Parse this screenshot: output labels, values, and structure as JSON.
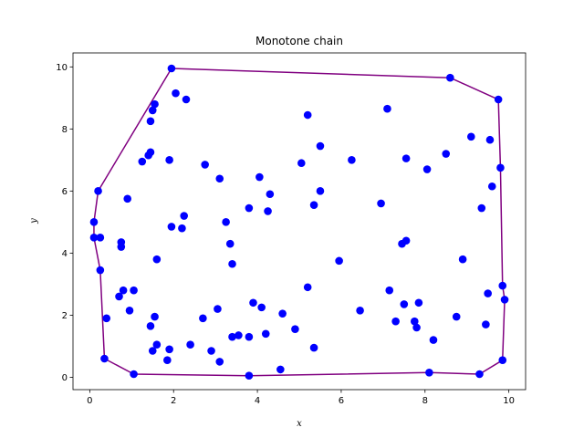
{
  "chart_data": {
    "type": "scatter",
    "title": "Monotone chain",
    "xlabel": "x",
    "ylabel": "y",
    "xlim": [
      -0.4,
      10.4
    ],
    "ylim": [
      -0.4,
      10.45
    ],
    "xticks": [
      0,
      2,
      4,
      6,
      8,
      10
    ],
    "yticks": [
      0,
      2,
      4,
      6,
      8,
      10
    ],
    "grid": false,
    "point_color": "#0000ff",
    "hull_color": "#800080",
    "points": [
      [
        0.1,
        5.0
      ],
      [
        0.1,
        4.5
      ],
      [
        0.2,
        6.0
      ],
      [
        0.25,
        4.5
      ],
      [
        0.25,
        3.45
      ],
      [
        0.35,
        0.6
      ],
      [
        0.4,
        1.9
      ],
      [
        0.7,
        2.6
      ],
      [
        0.75,
        4.2
      ],
      [
        0.75,
        4.35
      ],
      [
        0.8,
        2.8
      ],
      [
        0.9,
        5.75
      ],
      [
        0.95,
        2.15
      ],
      [
        1.05,
        2.8
      ],
      [
        1.05,
        0.1
      ],
      [
        1.25,
        6.95
      ],
      [
        1.4,
        7.15
      ],
      [
        1.45,
        7.25
      ],
      [
        1.45,
        8.25
      ],
      [
        1.5,
        8.6
      ],
      [
        1.55,
        8.8
      ],
      [
        1.45,
        1.65
      ],
      [
        1.55,
        1.95
      ],
      [
        1.5,
        0.85
      ],
      [
        1.6,
        1.05
      ],
      [
        1.6,
        3.8
      ],
      [
        1.85,
        0.55
      ],
      [
        1.9,
        0.9
      ],
      [
        1.9,
        7.0
      ],
      [
        1.95,
        4.85
      ],
      [
        1.95,
        9.95
      ],
      [
        2.05,
        9.15
      ],
      [
        2.2,
        4.8
      ],
      [
        2.25,
        5.2
      ],
      [
        2.3,
        8.95
      ],
      [
        2.4,
        1.05
      ],
      [
        2.7,
        1.9
      ],
      [
        2.75,
        6.85
      ],
      [
        2.9,
        0.85
      ],
      [
        3.05,
        2.2
      ],
      [
        3.1,
        6.4
      ],
      [
        3.1,
        0.5
      ],
      [
        3.25,
        5.0
      ],
      [
        3.35,
        4.3
      ],
      [
        3.4,
        3.65
      ],
      [
        3.4,
        1.3
      ],
      [
        3.55,
        1.35
      ],
      [
        3.8,
        5.45
      ],
      [
        3.8,
        1.3
      ],
      [
        3.8,
        0.05
      ],
      [
        3.9,
        2.4
      ],
      [
        4.05,
        6.45
      ],
      [
        4.1,
        2.25
      ],
      [
        4.2,
        1.4
      ],
      [
        4.3,
        5.9
      ],
      [
        4.25,
        5.35
      ],
      [
        4.55,
        0.25
      ],
      [
        4.6,
        2.05
      ],
      [
        4.9,
        1.55
      ],
      [
        5.05,
        6.9
      ],
      [
        5.2,
        8.45
      ],
      [
        5.2,
        2.9
      ],
      [
        5.35,
        0.95
      ],
      [
        5.35,
        5.55
      ],
      [
        5.5,
        6.0
      ],
      [
        5.5,
        7.45
      ],
      [
        5.95,
        3.75
      ],
      [
        6.25,
        7.0
      ],
      [
        6.45,
        2.15
      ],
      [
        6.95,
        5.6
      ],
      [
        7.1,
        8.65
      ],
      [
        7.15,
        2.8
      ],
      [
        7.3,
        1.8
      ],
      [
        7.45,
        4.3
      ],
      [
        7.55,
        4.4
      ],
      [
        7.55,
        7.05
      ],
      [
        7.5,
        2.35
      ],
      [
        7.75,
        1.8
      ],
      [
        7.8,
        1.6
      ],
      [
        7.85,
        2.4
      ],
      [
        8.05,
        6.7
      ],
      [
        8.1,
        0.15
      ],
      [
        8.2,
        1.2
      ],
      [
        8.5,
        7.2
      ],
      [
        8.6,
        9.65
      ],
      [
        8.75,
        1.95
      ],
      [
        8.9,
        3.8
      ],
      [
        9.1,
        7.75
      ],
      [
        9.3,
        0.1
      ],
      [
        9.35,
        5.45
      ],
      [
        9.45,
        1.7
      ],
      [
        9.5,
        2.7
      ],
      [
        9.55,
        7.65
      ],
      [
        9.6,
        6.15
      ],
      [
        9.75,
        8.95
      ],
      [
        9.8,
        6.75
      ],
      [
        9.85,
        2.95
      ],
      [
        9.85,
        0.55
      ],
      [
        9.9,
        2.5
      ]
    ],
    "hull": [
      [
        0.1,
        5.0
      ],
      [
        0.1,
        4.5
      ],
      [
        0.25,
        3.45
      ],
      [
        0.35,
        0.6
      ],
      [
        1.05,
        0.1
      ],
      [
        3.8,
        0.05
      ],
      [
        8.1,
        0.15
      ],
      [
        9.3,
        0.1
      ],
      [
        9.85,
        0.55
      ],
      [
        9.9,
        2.5
      ],
      [
        9.85,
        2.95
      ],
      [
        9.8,
        6.75
      ],
      [
        9.75,
        8.95
      ],
      [
        8.6,
        9.65
      ],
      [
        1.95,
        9.95
      ],
      [
        0.2,
        6.0
      ],
      [
        0.1,
        5.0
      ]
    ]
  }
}
